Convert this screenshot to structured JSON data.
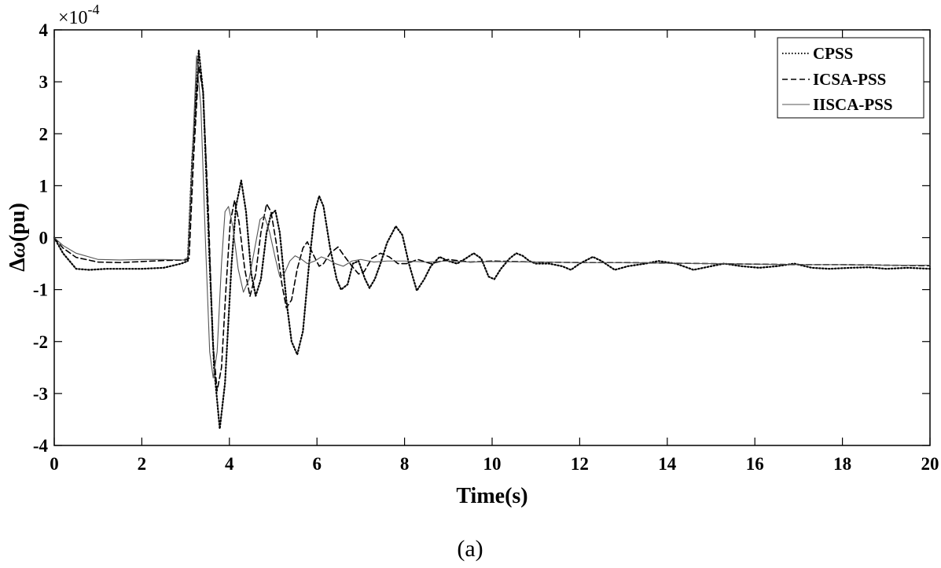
{
  "caption": "(a)",
  "chart_data": {
    "type": "line",
    "xlabel": "Time(s)",
    "ylabel": "Δω(pu)",
    "ylabel_parts": {
      "delta": "Δ",
      "omega": "ω",
      "unit": "(pu)"
    },
    "y_multiplier": {
      "base": "×10",
      "exponent": "-4"
    },
    "xlim": [
      0,
      20
    ],
    "ylim": [
      -4,
      4
    ],
    "x_ticks": [
      0,
      2,
      4,
      6,
      8,
      10,
      12,
      14,
      16,
      18,
      20
    ],
    "y_ticks": [
      -4,
      -3,
      -2,
      -1,
      0,
      1,
      2,
      3,
      4
    ],
    "grid": false,
    "legend_position": "top-right",
    "series": [
      {
        "name": "CPSS",
        "style": "dotted",
        "color": "#000000",
        "points": [
          [
            0,
            0
          ],
          [
            0.2,
            -0.3
          ],
          [
            0.5,
            -0.6
          ],
          [
            0.8,
            -0.62
          ],
          [
            1.2,
            -0.6
          ],
          [
            1.6,
            -0.6
          ],
          [
            2.0,
            -0.6
          ],
          [
            2.5,
            -0.58
          ],
          [
            2.9,
            -0.5
          ],
          [
            3.05,
            -0.45
          ],
          [
            3.15,
            1.5
          ],
          [
            3.3,
            3.6
          ],
          [
            3.4,
            2.8
          ],
          [
            3.55,
            -0.5
          ],
          [
            3.65,
            -2.5
          ],
          [
            3.78,
            -3.68
          ],
          [
            3.9,
            -2.8
          ],
          [
            4.05,
            -0.5
          ],
          [
            4.15,
            0.6
          ],
          [
            4.27,
            1.1
          ],
          [
            4.38,
            0.5
          ],
          [
            4.5,
            -0.7
          ],
          [
            4.6,
            -1.12
          ],
          [
            4.72,
            -0.8
          ],
          [
            4.85,
            0.1
          ],
          [
            4.95,
            0.45
          ],
          [
            5.05,
            0.52
          ],
          [
            5.15,
            0.1
          ],
          [
            5.3,
            -1.2
          ],
          [
            5.42,
            -2.0
          ],
          [
            5.55,
            -2.25
          ],
          [
            5.68,
            -1.8
          ],
          [
            5.82,
            -0.5
          ],
          [
            5.95,
            0.5
          ],
          [
            6.05,
            0.8
          ],
          [
            6.15,
            0.6
          ],
          [
            6.3,
            -0.2
          ],
          [
            6.45,
            -0.8
          ],
          [
            6.55,
            -1.0
          ],
          [
            6.7,
            -0.9
          ],
          [
            6.82,
            -0.5
          ],
          [
            6.95,
            -0.45
          ],
          [
            7.1,
            -0.8
          ],
          [
            7.2,
            -0.97
          ],
          [
            7.32,
            -0.8
          ],
          [
            7.45,
            -0.5
          ],
          [
            7.6,
            -0.1
          ],
          [
            7.8,
            0.22
          ],
          [
            7.95,
            0.05
          ],
          [
            8.1,
            -0.5
          ],
          [
            8.28,
            -1.02
          ],
          [
            8.45,
            -0.8
          ],
          [
            8.6,
            -0.55
          ],
          [
            8.8,
            -0.37
          ],
          [
            9.0,
            -0.45
          ],
          [
            9.2,
            -0.5
          ],
          [
            9.4,
            -0.4
          ],
          [
            9.58,
            -0.3
          ],
          [
            9.75,
            -0.4
          ],
          [
            9.92,
            -0.75
          ],
          [
            10.05,
            -0.8
          ],
          [
            10.2,
            -0.6
          ],
          [
            10.4,
            -0.4
          ],
          [
            10.55,
            -0.3
          ],
          [
            10.7,
            -0.35
          ],
          [
            10.85,
            -0.45
          ],
          [
            11.0,
            -0.5
          ],
          [
            11.3,
            -0.5
          ],
          [
            11.6,
            -0.55
          ],
          [
            11.8,
            -0.62
          ],
          [
            12.0,
            -0.5
          ],
          [
            12.3,
            -0.37
          ],
          [
            12.5,
            -0.45
          ],
          [
            12.8,
            -0.62
          ],
          [
            13.1,
            -0.55
          ],
          [
            13.5,
            -0.5
          ],
          [
            13.8,
            -0.45
          ],
          [
            14.2,
            -0.5
          ],
          [
            14.6,
            -0.62
          ],
          [
            15.0,
            -0.55
          ],
          [
            15.3,
            -0.5
          ],
          [
            15.7,
            -0.55
          ],
          [
            16.1,
            -0.58
          ],
          [
            16.5,
            -0.55
          ],
          [
            16.9,
            -0.5
          ],
          [
            17.3,
            -0.58
          ],
          [
            17.7,
            -0.6
          ],
          [
            18.2,
            -0.58
          ],
          [
            18.6,
            -0.57
          ],
          [
            19.0,
            -0.6
          ],
          [
            19.5,
            -0.58
          ],
          [
            20.0,
            -0.6
          ]
        ]
      },
      {
        "name": "ICSA-PSS",
        "style": "dashed",
        "color": "#000000",
        "points": [
          [
            0,
            0
          ],
          [
            0.2,
            -0.2
          ],
          [
            0.5,
            -0.38
          ],
          [
            1.0,
            -0.47
          ],
          [
            1.5,
            -0.48
          ],
          [
            2.0,
            -0.46
          ],
          [
            2.5,
            -0.44
          ],
          [
            3.0,
            -0.43
          ],
          [
            3.08,
            -0.4
          ],
          [
            3.18,
            1.5
          ],
          [
            3.3,
            3.3
          ],
          [
            3.4,
            2.8
          ],
          [
            3.52,
            0.5
          ],
          [
            3.62,
            -2.0
          ],
          [
            3.72,
            -2.95
          ],
          [
            3.82,
            -2.5
          ],
          [
            3.92,
            -1.0
          ],
          [
            4.02,
            0.3
          ],
          [
            4.12,
            0.72
          ],
          [
            4.22,
            0.3
          ],
          [
            4.35,
            -0.6
          ],
          [
            4.47,
            -1.13
          ],
          [
            4.6,
            -0.7
          ],
          [
            4.72,
            0.1
          ],
          [
            4.85,
            0.65
          ],
          [
            4.95,
            0.5
          ],
          [
            5.07,
            -0.1
          ],
          [
            5.2,
            -0.9
          ],
          [
            5.3,
            -1.35
          ],
          [
            5.42,
            -1.2
          ],
          [
            5.55,
            -0.6
          ],
          [
            5.68,
            -0.2
          ],
          [
            5.78,
            -0.08
          ],
          [
            5.9,
            -0.3
          ],
          [
            6.05,
            -0.55
          ],
          [
            6.15,
            -0.5
          ],
          [
            6.3,
            -0.3
          ],
          [
            6.48,
            -0.18
          ],
          [
            6.62,
            -0.35
          ],
          [
            6.8,
            -0.55
          ],
          [
            6.95,
            -0.7
          ],
          [
            7.08,
            -0.65
          ],
          [
            7.25,
            -0.4
          ],
          [
            7.45,
            -0.3
          ],
          [
            7.65,
            -0.37
          ],
          [
            7.85,
            -0.5
          ],
          [
            8.05,
            -0.5
          ],
          [
            8.3,
            -0.42
          ],
          [
            8.6,
            -0.5
          ],
          [
            9.0,
            -0.42
          ],
          [
            9.5,
            -0.47
          ],
          [
            10.0,
            -0.45
          ],
          [
            11.0,
            -0.47
          ],
          [
            12.0,
            -0.48
          ],
          [
            13.0,
            -0.48
          ],
          [
            14.0,
            -0.49
          ],
          [
            15.0,
            -0.5
          ],
          [
            16.0,
            -0.51
          ],
          [
            17.0,
            -0.52
          ],
          [
            18.0,
            -0.52
          ],
          [
            19.0,
            -0.53
          ],
          [
            20.0,
            -0.54
          ]
        ]
      },
      {
        "name": "IISCA-PSS",
        "style": "solid",
        "color": "#555555",
        "points": [
          [
            0,
            0
          ],
          [
            0.2,
            -0.15
          ],
          [
            0.5,
            -0.3
          ],
          [
            1.0,
            -0.42
          ],
          [
            1.5,
            -0.43
          ],
          [
            2.0,
            -0.42
          ],
          [
            2.5,
            -0.42
          ],
          [
            2.95,
            -0.43
          ],
          [
            3.05,
            -0.38
          ],
          [
            3.15,
            1.5
          ],
          [
            3.25,
            3.5
          ],
          [
            3.35,
            2.5
          ],
          [
            3.45,
            0.0
          ],
          [
            3.55,
            -2.2
          ],
          [
            3.63,
            -2.7
          ],
          [
            3.72,
            -2.2
          ],
          [
            3.82,
            -0.5
          ],
          [
            3.9,
            0.5
          ],
          [
            3.98,
            0.6
          ],
          [
            4.08,
            0.2
          ],
          [
            4.2,
            -0.6
          ],
          [
            4.32,
            -1.05
          ],
          [
            4.45,
            -0.8
          ],
          [
            4.58,
            -0.2
          ],
          [
            4.7,
            0.35
          ],
          [
            4.8,
            0.42
          ],
          [
            4.92,
            0.1
          ],
          [
            5.05,
            -0.4
          ],
          [
            5.15,
            -0.75
          ],
          [
            5.25,
            -0.7
          ],
          [
            5.38,
            -0.45
          ],
          [
            5.5,
            -0.35
          ],
          [
            5.62,
            -0.4
          ],
          [
            5.78,
            -0.5
          ],
          [
            5.95,
            -0.45
          ],
          [
            6.1,
            -0.37
          ],
          [
            6.25,
            -0.42
          ],
          [
            6.42,
            -0.5
          ],
          [
            6.6,
            -0.55
          ],
          [
            6.8,
            -0.45
          ],
          [
            7.0,
            -0.42
          ],
          [
            7.3,
            -0.47
          ],
          [
            7.6,
            -0.45
          ],
          [
            8.0,
            -0.45
          ],
          [
            8.5,
            -0.47
          ],
          [
            9.0,
            -0.45
          ],
          [
            9.5,
            -0.47
          ],
          [
            10.0,
            -0.46
          ],
          [
            11.0,
            -0.47
          ],
          [
            12.0,
            -0.48
          ],
          [
            13.0,
            -0.48
          ],
          [
            14.0,
            -0.49
          ],
          [
            15.0,
            -0.5
          ],
          [
            16.0,
            -0.51
          ],
          [
            17.0,
            -0.52
          ],
          [
            18.0,
            -0.52
          ],
          [
            19.0,
            -0.53
          ],
          [
            20.0,
            -0.53
          ]
        ]
      }
    ]
  }
}
